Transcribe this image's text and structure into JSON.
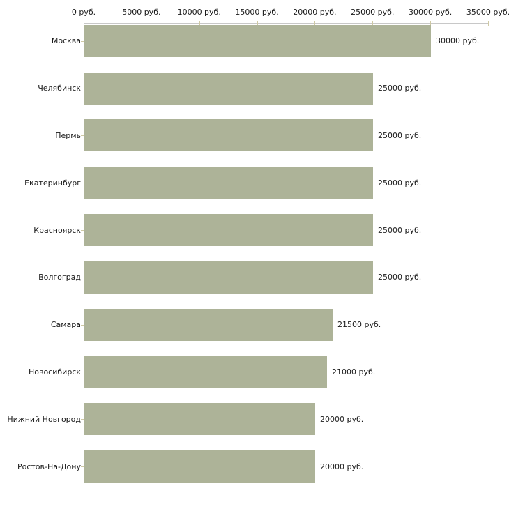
{
  "chart_data": {
    "type": "bar",
    "orientation": "horizontal",
    "title": "",
    "categories": [
      "Москва",
      "Челябинск",
      "Пермь",
      "Екатеринбург",
      "Красноярск",
      "Волгоград",
      "Самара",
      "Новосибирск",
      "Нижний Новгород",
      "Ростов-На-Дону"
    ],
    "values": [
      30000,
      25000,
      25000,
      25000,
      25000,
      25000,
      21500,
      21000,
      20000,
      20000
    ],
    "value_labels": [
      "30000 руб.",
      "25000 руб.",
      "25000 руб.",
      "25000 руб.",
      "25000 руб.",
      "25000 руб.",
      "21500 руб.",
      "21000 руб.",
      "20000 руб.",
      "20000 руб."
    ],
    "x_ticks": [
      "0 руб.",
      "5000 руб.",
      "10000 руб.",
      "15000 руб.",
      "20000 руб.",
      "25000 руб.",
      "30000 руб.",
      "35000 руб."
    ],
    "xlim": [
      0,
      35000
    ],
    "unit": "руб.",
    "xlabel": "",
    "ylabel": "",
    "legend": "none",
    "grid": "off",
    "colors": {
      "bar": "#adb398",
      "axis_line": "#c8c8c8",
      "tick_mark": "#cfc9a4",
      "text": "#1a1a1a",
      "background": "#ffffff"
    }
  }
}
